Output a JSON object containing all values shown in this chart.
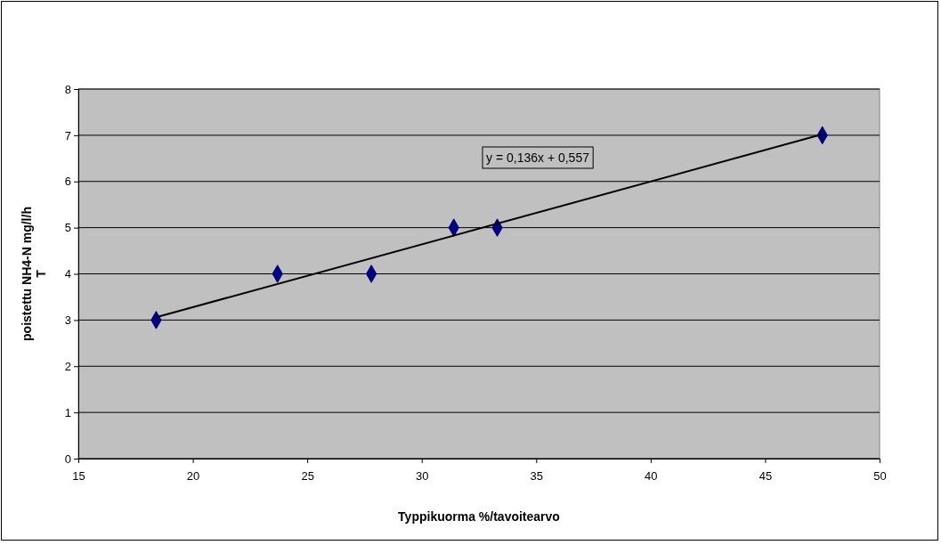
{
  "chart_data": {
    "type": "scatter",
    "xlabel": "Typpikuorma %/tavoitearvo",
    "ylabel": "poistettu NH4-N mg/l/h T",
    "xlim": [
      15,
      50
    ],
    "xticks": [
      15,
      20,
      25,
      30,
      35,
      40,
      45,
      50
    ],
    "ylim": [
      0,
      8
    ],
    "yticks": [
      0,
      1,
      2,
      3,
      4,
      5,
      6,
      7,
      8
    ],
    "grid": "y",
    "marker": "diamond",
    "series": [
      {
        "color": "#000080",
        "x": [
          18.4,
          23.7,
          27.8,
          31.4,
          33.3,
          47.5
        ],
        "values": [
          3,
          4,
          4,
          5,
          5,
          7
        ]
      },
      {
        "type": "line",
        "color": "#000000",
        "marker": "none",
        "x": [
          18.4,
          47.5
        ],
        "values": [
          3.06,
          7.02
        ]
      }
    ],
    "annotations": [
      "y = 0,136x + 0,557"
    ]
  }
}
